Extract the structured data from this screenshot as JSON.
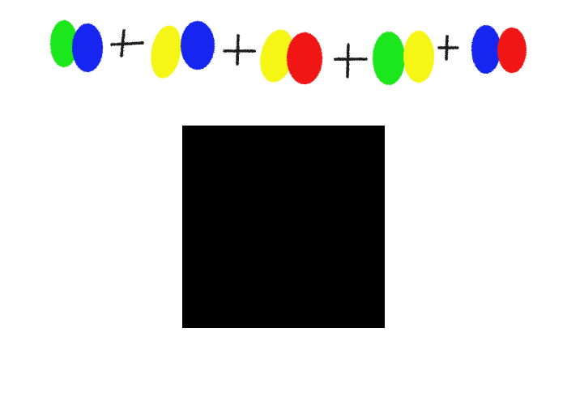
{
  "colors": {
    "background": "#ffffff",
    "green": "#1ee61e",
    "blue": "#1426f0",
    "yellow": "#f5f514",
    "red": "#f01414",
    "plus": "#1a1a1a",
    "square": "#000000"
  },
  "equation": {
    "terms": [
      {
        "left": "green-blob",
        "right": "blue-blob"
      },
      {
        "left": "yellow-blob",
        "right": "blue-blob"
      },
      {
        "left": "yellow-blob",
        "right": "red-blob"
      },
      {
        "left": "green-blob",
        "right": "yellow-blob"
      },
      {
        "left": "blue-blob",
        "right": "red-blob"
      }
    ],
    "operator_icon": "plus-icon"
  },
  "result_box": {
    "icon": "black-square"
  }
}
